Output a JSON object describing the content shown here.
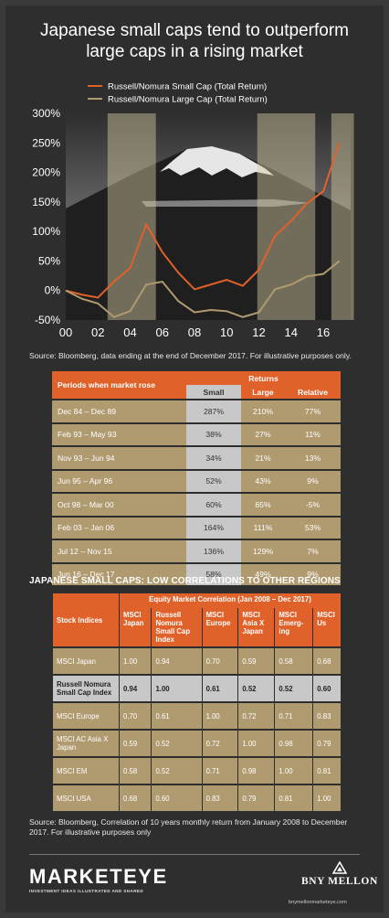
{
  "title_line1": "Japanese small caps tend to outperform",
  "title_line2": "large caps in a rising market",
  "chart_data": {
    "type": "line",
    "title": "Japanese small caps tend to outperform large caps in a rising market",
    "x": [
      2000,
      2001,
      2002,
      2003,
      2004,
      2005,
      2006,
      2007,
      2008,
      2009,
      2010,
      2011,
      2012,
      2013,
      2014,
      2015,
      2016,
      2017
    ],
    "x_tick_labels": [
      "00",
      "02",
      "04",
      "06",
      "08",
      "10",
      "12",
      "14",
      "16"
    ],
    "y_tick_labels": [
      "300%",
      "250%",
      "200%",
      "150%",
      "100%",
      "50%",
      "0%",
      "-50%"
    ],
    "ylim": [
      -50,
      300
    ],
    "series": [
      {
        "name": "Russell/Nomura Small Cap (Total Return)",
        "color": "#e0622a",
        "values": [
          0,
          -7,
          -12,
          15,
          38,
          112,
          65,
          30,
          2,
          10,
          18,
          8,
          35,
          92,
          118,
          148,
          168,
          250
        ]
      },
      {
        "name": "Russell/Nomura Large Cap (Total Return)",
        "color": "#b09a6f",
        "values": [
          0,
          -14,
          -22,
          -45,
          -35,
          10,
          15,
          -18,
          -37,
          -33,
          -35,
          -45,
          -37,
          2,
          10,
          24,
          28,
          50
        ]
      }
    ],
    "rising_periods": [
      [
        2002.6,
        2005.6
      ],
      [
        2011.9,
        2015.5
      ],
      [
        2016.5,
        2017.9
      ]
    ],
    "legend_position": "top",
    "grid": false
  },
  "source1": "Source: Bloomberg, data ending at the end of December 2017. For illustrative purposes only.",
  "table1": {
    "header_period": "Periods when market rose",
    "header_returns": "Returns",
    "sub_small": "Small",
    "sub_large": "Large",
    "sub_relative": "Relative",
    "rows": [
      {
        "period": "Dec 84 – Dec 89",
        "small": "287%",
        "large": "210%",
        "relative": "77%"
      },
      {
        "period": "Feb 93 – May 93",
        "small": "38%",
        "large": "27%",
        "relative": "11%"
      },
      {
        "period": "Nov 93 – Jun 94",
        "small": "34%",
        "large": "21%",
        "relative": "13%"
      },
      {
        "period": "Jun 95 – Apr 96",
        "small": "52%",
        "large": "43%",
        "relative": "9%"
      },
      {
        "period": "Oct 98 – Mar 00",
        "small": "60%",
        "large": "65%",
        "relative": "-5%"
      },
      {
        "period": "Feb 03 – Jan 06",
        "small": "164%",
        "large": "111%",
        "relative": "53%"
      },
      {
        "period": "Jul 12 – Nov 15",
        "small": "136%",
        "large": "129%",
        "relative": "7%"
      },
      {
        "period": "Jun 16 – Dec 17",
        "small": "58%",
        "large": "49%",
        "relative": "9%"
      }
    ]
  },
  "corr_title": "JAPANESE SMALL CAPS: LOW CORRELATIONS TO OTHER REGIONS",
  "table2": {
    "header_span": "Equity Market Correlation (Jan 2008 – Dec 2017)",
    "row_header": "Stock Indices",
    "columns": [
      "MSCI Japan",
      "Russell Nomura Small Cap Index",
      "MSCI Europe",
      "MSCI Asia X Japan",
      "MSCI Emerg-ing",
      "MSCI Us"
    ],
    "rows": [
      {
        "name": "MSCI Japan",
        "values": [
          "1.00",
          "0.94",
          "0.70",
          "0.59",
          "0.58",
          "0.68"
        ],
        "highlight": false
      },
      {
        "name": "Russell Nomura Small Cap Index",
        "values": [
          "0.94",
          "1.00",
          "0.61",
          "0.52",
          "0.52",
          "0.60"
        ],
        "highlight": true
      },
      {
        "name": "MSCI Europe",
        "values": [
          "0.70",
          "0.61",
          "1.00",
          "0.72",
          "0.71",
          "0.83"
        ],
        "highlight": false
      },
      {
        "name": "MSCI AC Asia X Japan",
        "values": [
          "0.59",
          "0.52",
          "0.72",
          "1.00",
          "0.98",
          "0.79"
        ],
        "highlight": false
      },
      {
        "name": "MSCI EM",
        "values": [
          "0.58",
          "0.52",
          "0.71",
          "0.98",
          "1.00",
          "0.81"
        ],
        "highlight": false
      },
      {
        "name": "MSCI USA",
        "values": [
          "0.68",
          "0.60",
          "0.83",
          "0.79",
          "0.81",
          "1.00"
        ],
        "highlight": false
      }
    ]
  },
  "source2": "Source: Bloomberg, Correlation of 10 years monthly return from January 2008 to December 2017. For illustrative purposes only",
  "footer": {
    "logo": "MARKETEYE",
    "logo_sub": "INVESTMENT IDEAS ILLUSTRATED AND SHARED",
    "brand": "BNY MELLON",
    "url": "bnymellonmarketeye.com"
  }
}
